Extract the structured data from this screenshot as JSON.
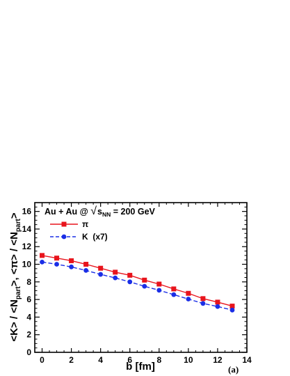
{
  "chart_data": {
    "type": "line",
    "xlabel": "b [fm]",
    "ylabel": "<K> / <N_part>,  <π> / <N_part>",
    "xlim": [
      -0.5,
      14
    ],
    "ylim": [
      0,
      17
    ],
    "xticks": [
      0,
      2,
      4,
      6,
      8,
      10,
      12,
      14
    ],
    "yticks": [
      0,
      2,
      4,
      6,
      8,
      10,
      12,
      14,
      16
    ],
    "grid": false,
    "legend_position": "top-left",
    "legend_title": "Au + Au @ √s_NN = 200 GeV",
    "panel_label": "(a)",
    "series": [
      {
        "name": "π",
        "color": "#e8141c",
        "marker": "square",
        "line_style": "solid",
        "x": [
          0,
          1,
          2,
          3,
          4,
          5,
          6,
          7,
          8,
          9,
          10,
          11,
          12,
          13
        ],
        "y": [
          11.0,
          10.7,
          10.4,
          10.0,
          9.55,
          9.1,
          8.75,
          8.2,
          7.75,
          7.2,
          6.7,
          6.1,
          5.7,
          5.25
        ]
      },
      {
        "name": "K  (x7)",
        "color": "#1a2ee6",
        "marker": "circle",
        "line_style": "dashed",
        "x": [
          0,
          1,
          2,
          3,
          4,
          5,
          6,
          7,
          8,
          9,
          10,
          11,
          12,
          13
        ],
        "y": [
          10.25,
          10.0,
          9.7,
          9.3,
          8.85,
          8.45,
          8.0,
          7.5,
          7.05,
          6.55,
          6.05,
          5.55,
          5.2,
          4.8
        ]
      }
    ]
  }
}
